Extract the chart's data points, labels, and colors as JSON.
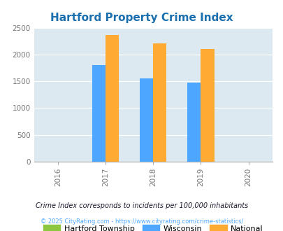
{
  "title": "Hartford Property Crime Index",
  "years": [
    2016,
    2017,
    2018,
    2019,
    2020
  ],
  "bar_years": [
    2017,
    2018,
    2019
  ],
  "wisconsin_values": [
    1800,
    1558,
    1480
  ],
  "national_values": [
    2362,
    2213,
    2100
  ],
  "hartford_color": "#8dc63f",
  "wisconsin_color": "#4da6ff",
  "national_color": "#ffaa33",
  "bg_color": "#dce9f0",
  "ylim": [
    0,
    2500
  ],
  "yticks": [
    0,
    500,
    1000,
    1500,
    2000,
    2500
  ],
  "bar_width": 0.28,
  "legend_labels": [
    "Hartford Township",
    "Wisconsin",
    "National"
  ],
  "footnote1": "Crime Index corresponds to incidents per 100,000 inhabitants",
  "footnote2": "© 2025 CityRating.com - https://www.cityrating.com/crime-statistics/",
  "title_color": "#1a6faf",
  "footnote1_color": "#1a1a2e",
  "footnote2_color": "#4da6ff",
  "title_fontsize": 11,
  "tick_label_color": "#777777",
  "grid_color": "#ffffff",
  "spine_color": "#aaaaaa"
}
